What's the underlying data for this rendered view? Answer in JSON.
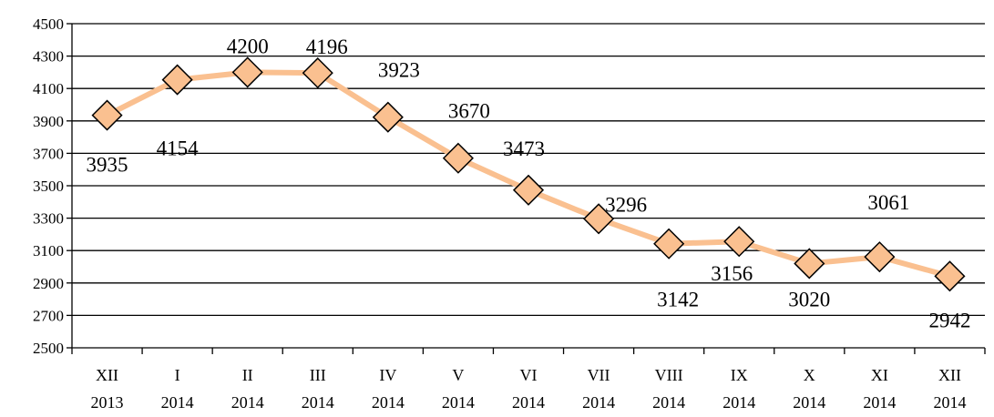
{
  "chart_data": {
    "type": "line",
    "categories": [
      [
        "XII",
        "2013"
      ],
      [
        "I",
        "2014"
      ],
      [
        "II",
        "2014"
      ],
      [
        "III",
        "2014"
      ],
      [
        "IV",
        "2014"
      ],
      [
        "V",
        "2014"
      ],
      [
        "VI",
        "2014"
      ],
      [
        "VII",
        "2014"
      ],
      [
        "VIII",
        "2014"
      ],
      [
        "IX",
        "2014"
      ],
      [
        "X",
        "2014"
      ],
      [
        "XI",
        "2014"
      ],
      [
        "XII",
        "2014"
      ]
    ],
    "series": [
      {
        "values": [
          3935,
          4154,
          4200,
          4196,
          3923,
          3670,
          3473,
          3296,
          3142,
          3156,
          3020,
          3061,
          2942
        ],
        "labels": [
          "3935",
          "4154",
          "4200",
          "4196",
          "3923",
          "3670",
          "3473",
          "3296",
          "3142",
          "3156",
          "3020",
          "3061",
          "2942"
        ],
        "line_color": "#FAC090",
        "marker_color": "#FAC090",
        "marker": "diamond"
      }
    ],
    "ylim": [
      2500,
      4500
    ],
    "yticks": [
      2500,
      2700,
      2900,
      3100,
      3300,
      3500,
      3700,
      3900,
      4100,
      4300,
      4500
    ],
    "ytick_labels": [
      "2500",
      "2700",
      "2900",
      "3100",
      "3300",
      "3500",
      "3700",
      "3900",
      "4100",
      "4300",
      "4500"
    ],
    "grid": true,
    "legend": false,
    "title": "",
    "xlabel": "",
    "ylabel": ""
  }
}
